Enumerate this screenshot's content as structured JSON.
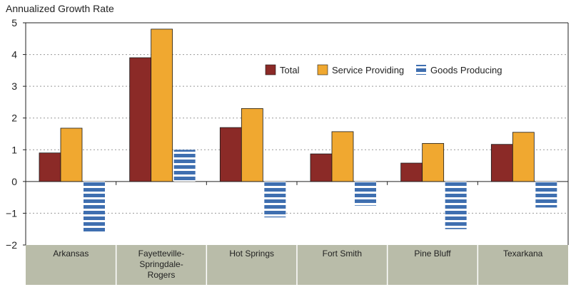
{
  "chart_data": {
    "type": "bar",
    "ylabel": "Annualized Growth Rate",
    "xlabel": "",
    "ylim": [
      -2,
      5
    ],
    "yticks": [
      "5",
      "4",
      "3",
      "2",
      "1",
      "0",
      "−1",
      "−2"
    ],
    "ytick_values": [
      5,
      4,
      3,
      2,
      1,
      0,
      -1,
      -2
    ],
    "grid": "horizontal-dashed",
    "legend_position": "top-right-inside",
    "categories": [
      [
        "Arkansas"
      ],
      [
        "Fayetteville-",
        "Springdale-",
        "Rogers"
      ],
      [
        "Hot Springs"
      ],
      [
        "Fort Smith"
      ],
      [
        "Pine Bluff"
      ],
      [
        "Texarkana"
      ]
    ],
    "series": [
      {
        "name": "Total",
        "color": "#8b2a27",
        "pattern": "solid",
        "values": [
          0.9,
          3.9,
          1.7,
          0.87,
          0.58,
          1.17
        ]
      },
      {
        "name": "Service Providing",
        "color": "#f0a830",
        "pattern": "solid",
        "values": [
          1.68,
          4.8,
          2.3,
          1.57,
          1.2,
          1.55
        ]
      },
      {
        "name": "Goods Producing",
        "color": "#3f6fb0",
        "pattern": "striped",
        "values": [
          -1.58,
          1.0,
          -1.13,
          -0.76,
          -1.5,
          -0.82
        ]
      }
    ],
    "category_band_color": "#b9bca9"
  }
}
